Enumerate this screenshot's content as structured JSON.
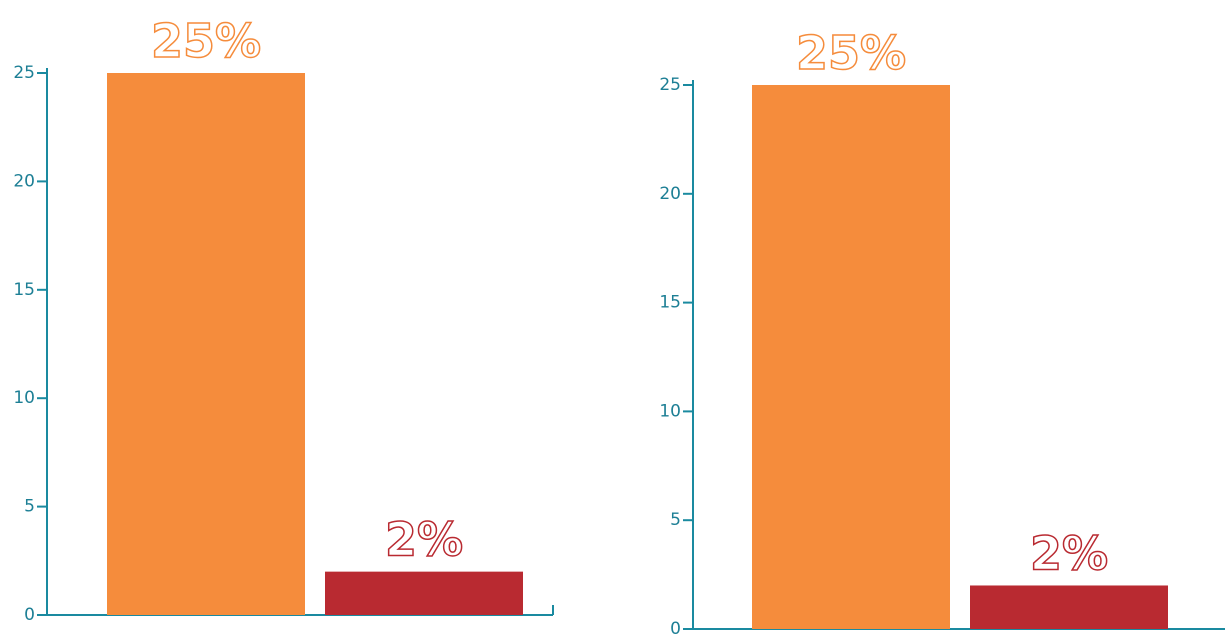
{
  "chart_data": [
    {
      "type": "bar",
      "categories": [
        null,
        null
      ],
      "values": [
        25,
        2
      ],
      "value_labels": [
        "25%",
        "2%"
      ],
      "colors": [
        "#f58c3c",
        "#b92a31"
      ],
      "ylim": [
        0,
        25
      ],
      "yticks": [
        0,
        5,
        10,
        15,
        20,
        25
      ]
    },
    {
      "type": "bar",
      "categories": [
        null,
        null
      ],
      "values": [
        25,
        2
      ],
      "value_labels": [
        "25%",
        "2%"
      ],
      "colors": [
        "#f58c3c",
        "#b92a31"
      ],
      "ylim": [
        0,
        25
      ],
      "yticks": [
        0,
        5,
        10,
        15,
        20,
        25
      ]
    }
  ]
}
